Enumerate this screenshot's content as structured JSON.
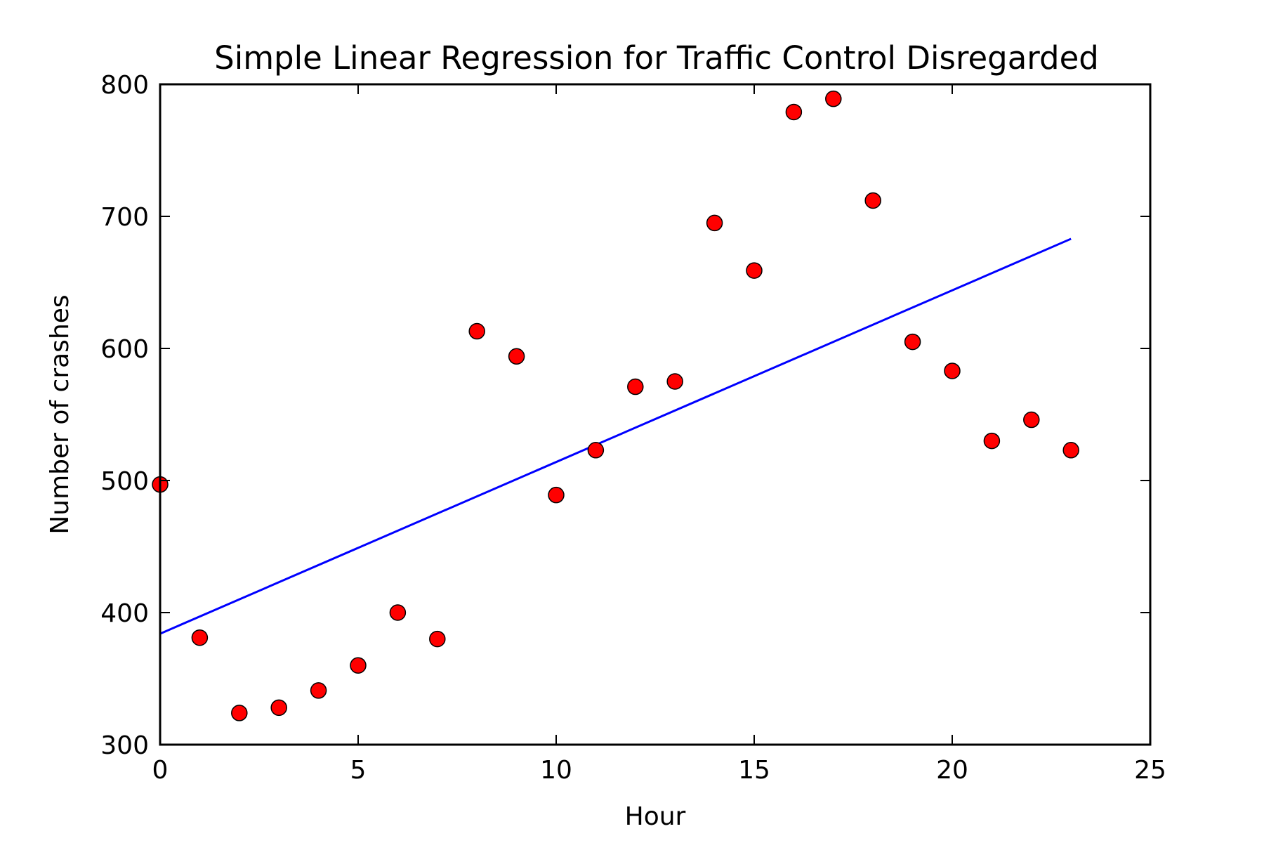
{
  "chart_data": {
    "type": "scatter",
    "title": "Simple Linear Regression for Traffic Control Disregarded",
    "xlabel": "Hour",
    "ylabel": "Number of crashes",
    "xlim": [
      0,
      25
    ],
    "ylim": [
      300,
      800
    ],
    "xticks": [
      0,
      5,
      10,
      15,
      20,
      25
    ],
    "yticks": [
      300,
      400,
      500,
      600,
      700,
      800
    ],
    "xtick_labels": [
      "0",
      "5",
      "10",
      "15",
      "20",
      "25"
    ],
    "ytick_labels": [
      "300",
      "400",
      "500",
      "600",
      "700",
      "800"
    ],
    "grid": false,
    "series": [
      {
        "type": "scatter",
        "color": "#ff0000",
        "x": [
          0,
          1,
          2,
          3,
          4,
          5,
          6,
          7,
          8,
          9,
          10,
          11,
          12,
          13,
          14,
          15,
          16,
          17,
          18,
          19,
          20,
          21,
          22,
          23
        ],
        "y": [
          497,
          381,
          324,
          328,
          341,
          360,
          400,
          380,
          613,
          594,
          489,
          523,
          571,
          575,
          695,
          659,
          779,
          789,
          712,
          605,
          583,
          530,
          546,
          523
        ]
      },
      {
        "type": "line",
        "color": "#0000ff",
        "x": [
          0,
          23
        ],
        "y": [
          384,
          683
        ]
      }
    ]
  }
}
